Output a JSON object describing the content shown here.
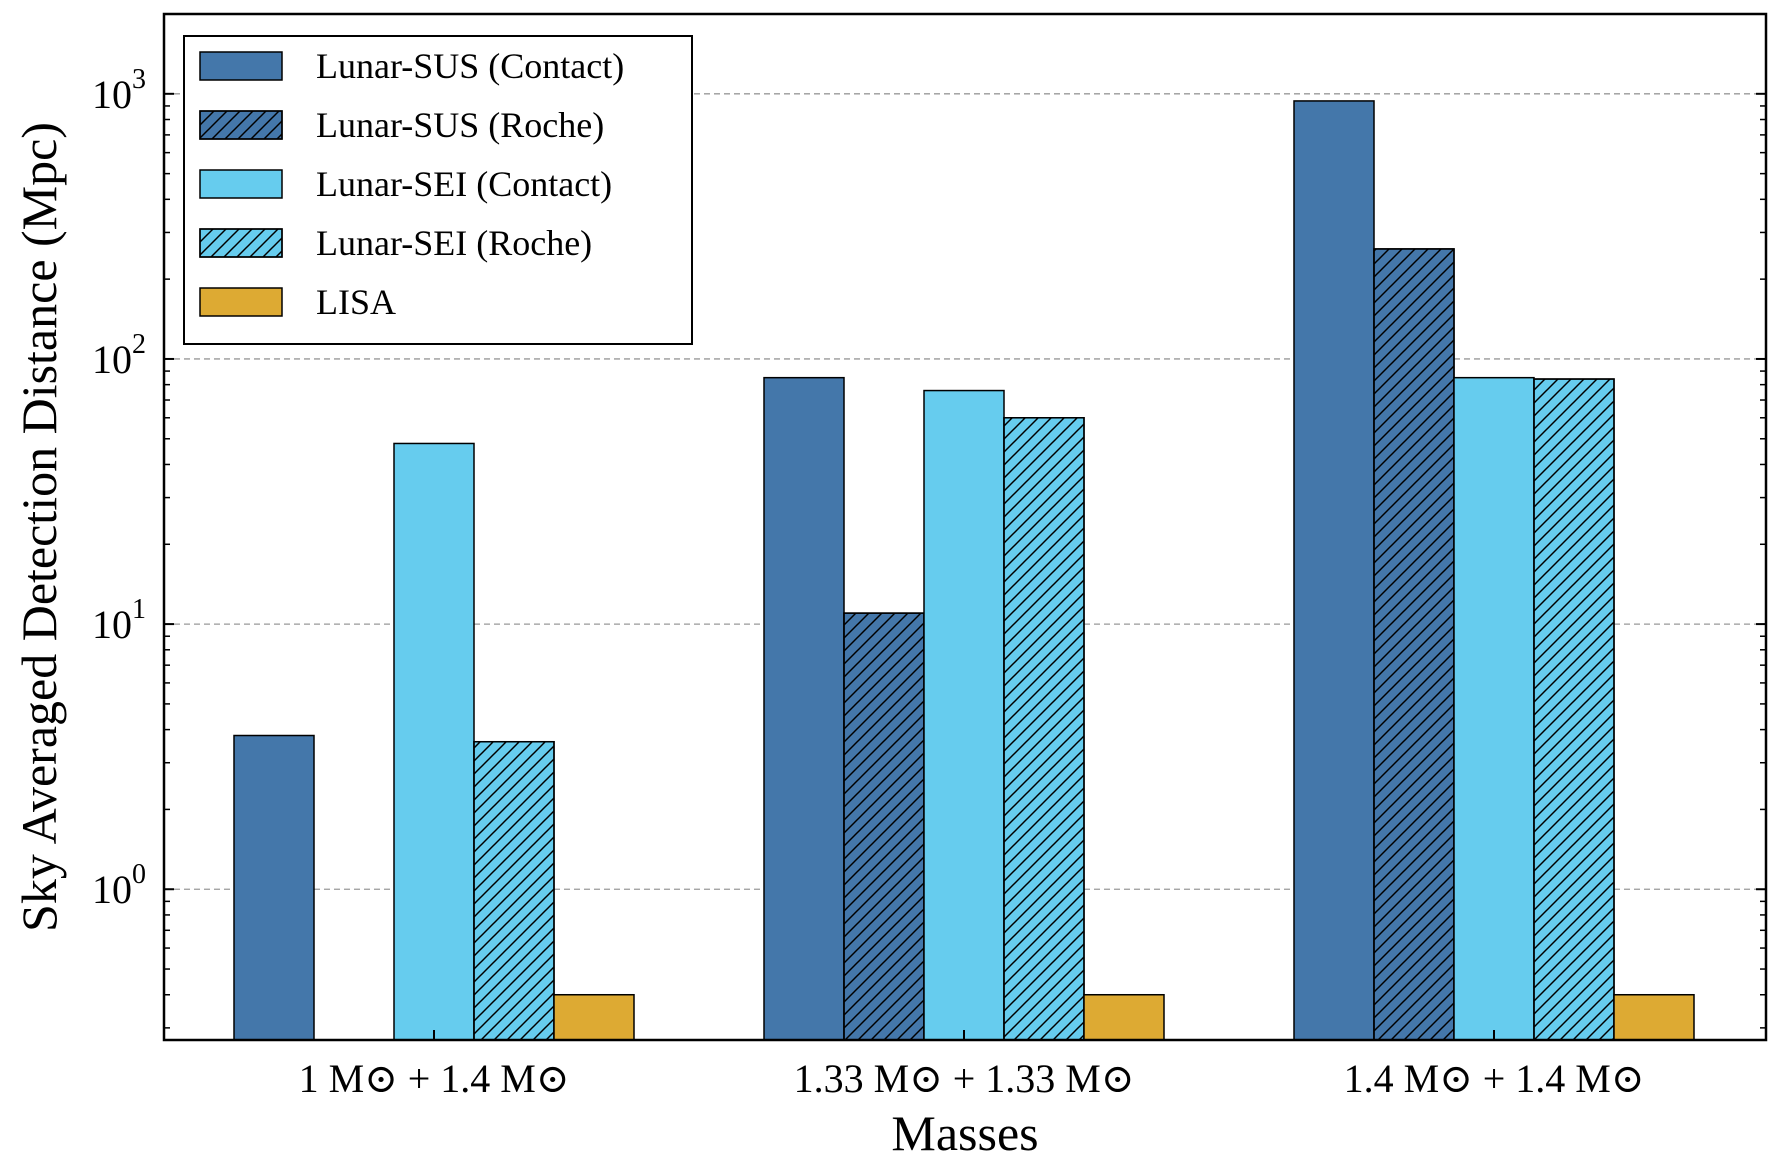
{
  "chart_data": {
    "type": "bar",
    "scale_y": "log",
    "title": "",
    "xlabel": "Masses",
    "ylabel": "Sky Averaged Detection Distance (Mpc)",
    "ylim": [
      0.27,
      2000
    ],
    "yticks": [
      {
        "value": 1,
        "base": "10",
        "exp": "0"
      },
      {
        "value": 10,
        "base": "10",
        "exp": "1"
      },
      {
        "value": 100,
        "base": "10",
        "exp": "2"
      },
      {
        "value": 1000,
        "base": "10",
        "exp": "3"
      }
    ],
    "grid": "horizontal dashed at major ticks",
    "legend_position": "top-left",
    "categories": [
      {
        "label": "1 M⊙ + 1.4 M⊙"
      },
      {
        "label": "1.33 M⊙ + 1.33 M⊙"
      },
      {
        "label": "1.4 M⊙ + 1.4 M⊙"
      }
    ],
    "series": [
      {
        "name": "Lunar-SUS (Contact)",
        "color": "#4477aa",
        "hatch": false,
        "values": [
          3.8,
          85,
          940
        ]
      },
      {
        "name": "Lunar-SUS (Roche)",
        "color": "#4477aa",
        "hatch": true,
        "values": [
          null,
          11,
          260
        ]
      },
      {
        "name": "Lunar-SEI (Contact)",
        "color": "#66ccee",
        "hatch": false,
        "values": [
          48,
          76,
          85
        ]
      },
      {
        "name": "Lunar-SEI (Roche)",
        "color": "#66ccee",
        "hatch": true,
        "values": [
          3.6,
          60,
          84
        ]
      },
      {
        "name": "LISA",
        "color": "#ddaa33",
        "hatch": false,
        "values": [
          0.4,
          0.4,
          0.4
        ]
      }
    ]
  }
}
